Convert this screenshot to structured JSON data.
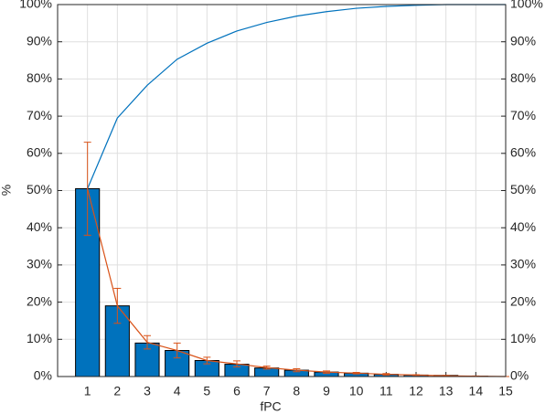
{
  "chart_data": {
    "type": "bar",
    "xlabel": "fPC",
    "ylabel": "%",
    "categories": [
      1,
      2,
      3,
      4,
      5,
      6,
      7,
      8,
      9,
      10,
      11,
      12,
      13,
      14,
      15
    ],
    "xlim": [
      0,
      15
    ],
    "xticks": [
      1,
      2,
      3,
      4,
      5,
      6,
      7,
      8,
      9,
      10,
      11,
      12,
      13,
      14,
      15
    ],
    "ylim": [
      0,
      100
    ],
    "yticks": [
      {
        "value": 0,
        "label": "0%"
      },
      {
        "value": 10,
        "label": "10%"
      },
      {
        "value": 20,
        "label": "20%"
      },
      {
        "value": 30,
        "label": "30%"
      },
      {
        "value": 40,
        "label": "40%"
      },
      {
        "value": 50,
        "label": "50%"
      },
      {
        "value": 60,
        "label": "60%"
      },
      {
        "value": 70,
        "label": "70%"
      },
      {
        "value": 80,
        "label": "80%"
      },
      {
        "value": 90,
        "label": "90%"
      },
      {
        "value": 100,
        "label": "100%"
      }
    ],
    "y2lim": [
      0,
      100
    ],
    "y2ticks": [
      {
        "value": 0,
        "label": "0%"
      },
      {
        "value": 10,
        "label": "10%"
      },
      {
        "value": 20,
        "label": "20%"
      },
      {
        "value": 30,
        "label": "30%"
      },
      {
        "value": 40,
        "label": "40%"
      },
      {
        "value": 50,
        "label": "50%"
      },
      {
        "value": 60,
        "label": "60%"
      },
      {
        "value": 70,
        "label": "70%"
      },
      {
        "value": 80,
        "label": "80%"
      },
      {
        "value": 90,
        "label": "90%"
      },
      {
        "value": 100,
        "label": "100%"
      }
    ],
    "grid": true,
    "series": [
      {
        "type": "bar",
        "color": "#0072bd",
        "values": [
          50.5,
          19,
          9,
          7,
          4.3,
          3.3,
          2.3,
          1.7,
          1.2,
          0.9,
          0.6,
          0.4,
          0.3,
          0.1,
          0
        ]
      },
      {
        "type": "line",
        "color": "#0072bd",
        "values": [
          50.5,
          69.5,
          78.3,
          85.3,
          89.6,
          92.9,
          95.2,
          96.9,
          98.1,
          99,
          99.5,
          99.8,
          100,
          100,
          100
        ]
      },
      {
        "type": "errorbar",
        "color": "#d95319",
        "values": [
          50.5,
          19,
          9.2,
          7,
          4.3,
          3.4,
          2.4,
          1.7,
          1.2,
          0.9,
          0.6,
          0.4,
          0.2,
          0.1,
          0
        ],
        "errors": [
          12.5,
          4.7,
          1.8,
          2,
          0.9,
          0.8,
          0.4,
          0.4,
          0.3,
          0.2,
          0.2,
          0.1,
          0.1,
          0.05,
          0
        ]
      }
    ]
  }
}
